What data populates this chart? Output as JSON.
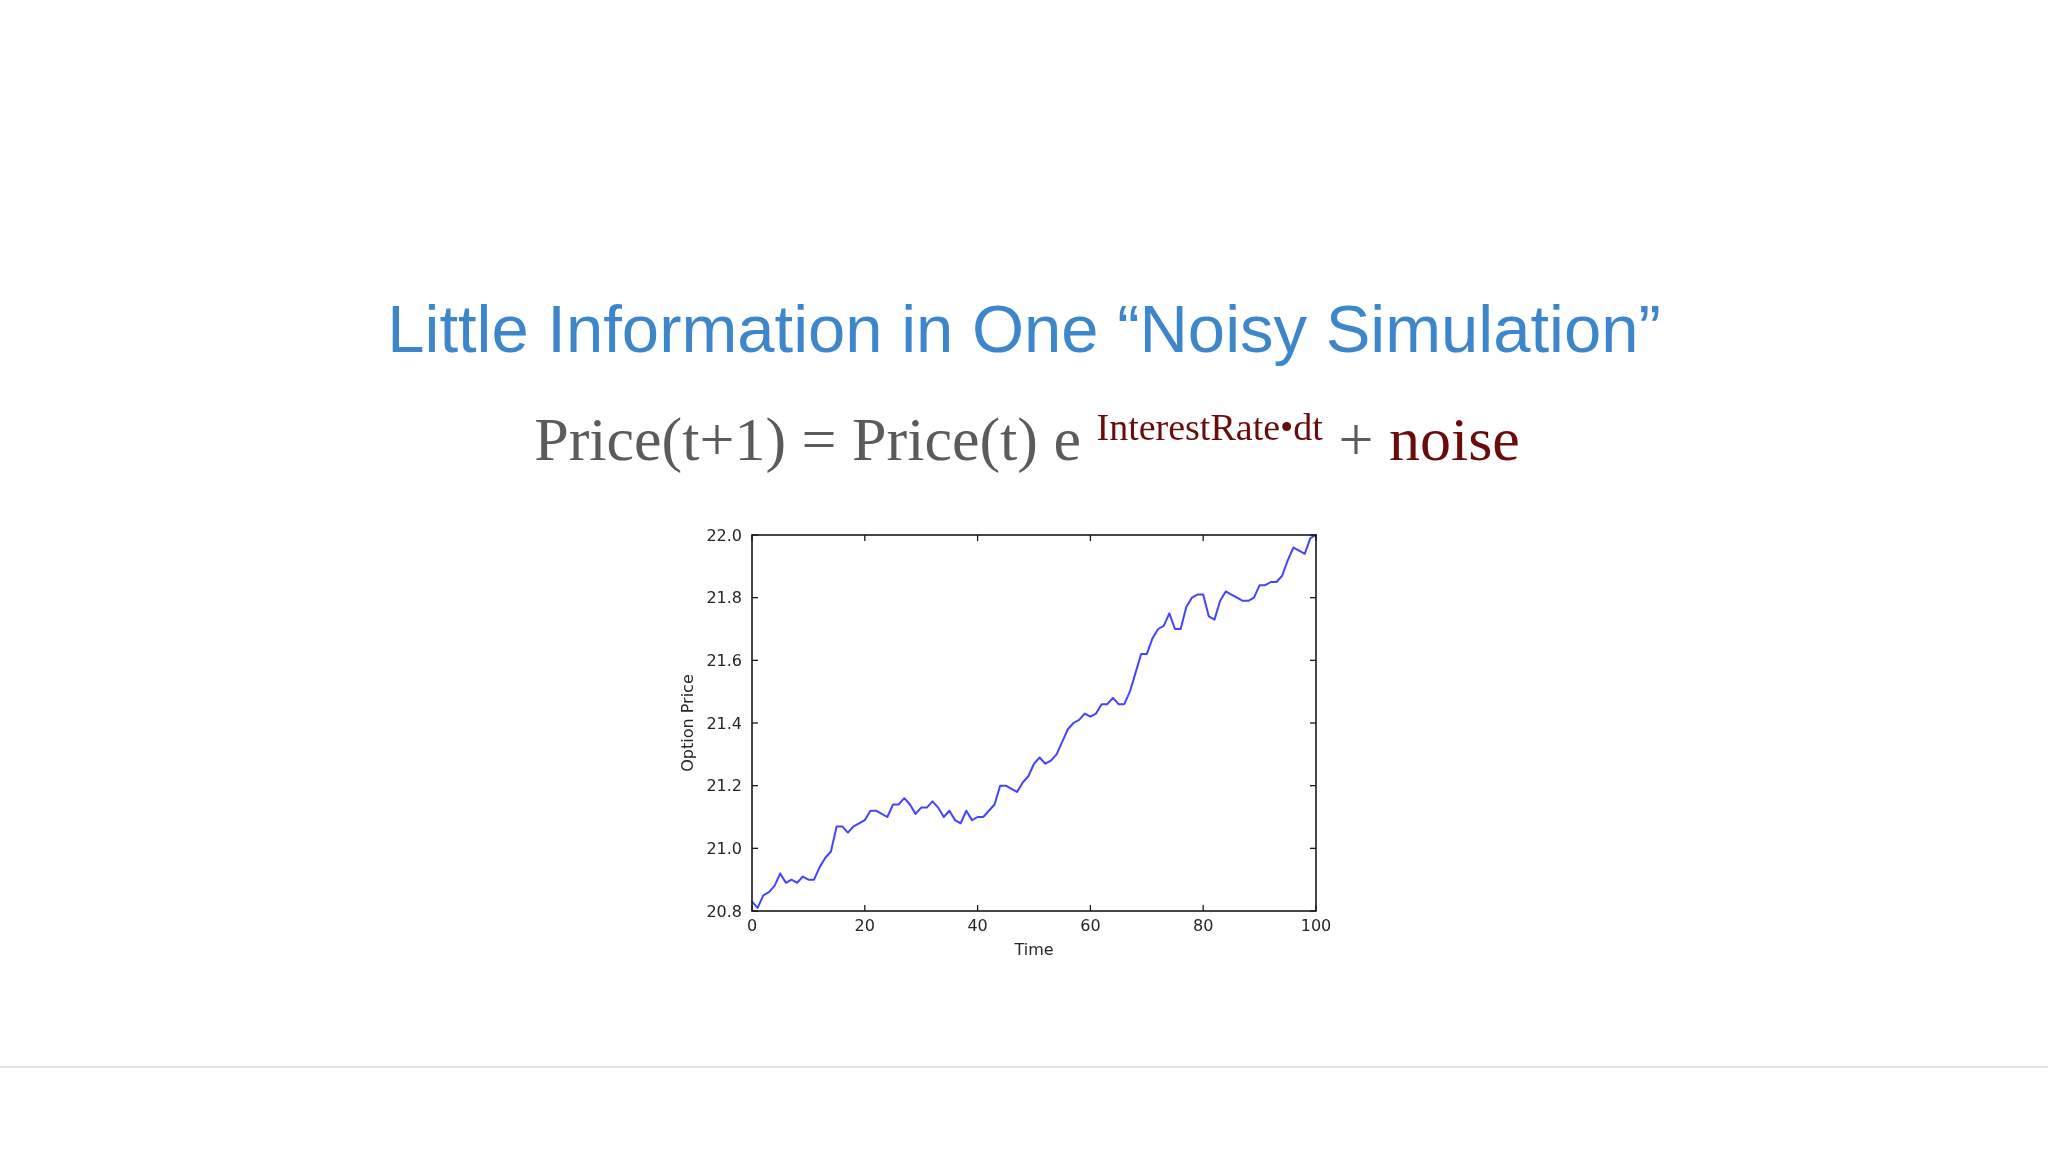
{
  "chart_data": {
    "type": "line",
    "title": "Little Information in One “Noisy Simulation”",
    "subtitle": "Price(t+1) = Price(t) e $^{InterestRate•dt}$ + noise",
    "xlabel": "Time",
    "ylabel": "Option Price",
    "x": [
      0,
      1,
      2,
      3,
      4,
      5,
      6,
      7,
      8,
      9,
      10,
      11,
      12,
      13,
      14,
      15,
      16,
      17,
      18,
      19,
      20,
      21,
      22,
      23,
      24,
      25,
      26,
      27,
      28,
      29,
      30,
      31,
      32,
      33,
      34,
      35,
      36,
      37,
      38,
      39,
      40,
      41,
      42,
      43,
      44,
      45,
      46,
      47,
      48,
      49,
      50,
      51,
      52,
      53,
      54,
      55,
      56,
      57,
      58,
      59,
      60,
      61,
      62,
      63,
      64,
      65,
      66,
      67,
      68,
      69,
      70,
      71,
      72,
      73,
      74,
      75,
      76,
      77,
      78,
      79,
      80,
      81,
      82,
      83,
      84,
      85,
      86,
      87,
      88,
      89,
      90,
      91,
      92,
      93,
      94,
      95,
      96,
      97,
      98,
      99,
      100
    ],
    "series": [
      {
        "color": "#4444ff",
        "values": [
          20.83,
          20.81,
          20.85,
          20.86,
          20.88,
          20.92,
          20.89,
          20.9,
          20.89,
          20.91,
          20.9,
          20.9,
          20.94,
          20.97,
          20.99,
          21.07,
          21.07,
          21.05,
          21.07,
          21.08,
          21.09,
          21.12,
          21.12,
          21.11,
          21.1,
          21.14,
          21.14,
          21.16,
          21.14,
          21.11,
          21.13,
          21.13,
          21.15,
          21.13,
          21.1,
          21.12,
          21.09,
          21.08,
          21.12,
          21.09,
          21.1,
          21.1,
          21.12,
          21.14,
          21.2,
          21.2,
          21.19,
          21.18,
          21.21,
          21.23,
          21.27,
          21.29,
          21.27,
          21.28,
          21.3,
          21.34,
          21.38,
          21.4,
          21.41,
          21.43,
          21.42,
          21.43,
          21.46,
          21.46,
          21.48,
          21.46,
          21.46,
          21.5,
          21.56,
          21.62,
          21.62,
          21.67,
          21.7,
          21.71,
          21.75,
          21.7,
          21.7,
          21.77,
          21.8,
          21.81,
          21.81,
          21.74,
          21.73,
          21.79,
          21.82,
          21.81,
          21.8,
          21.79,
          21.79,
          21.8,
          21.84,
          21.84,
          21.85,
          21.85,
          21.87,
          21.92,
          21.96,
          21.95,
          21.94,
          21.99,
          22.0
        ]
      }
    ],
    "xlim": [
      0,
      100
    ],
    "ylim": [
      20.8,
      22.0
    ],
    "xticks": [
      0,
      20,
      40,
      60,
      80,
      100
    ],
    "yticks": [
      20.8,
      {
        "value": 21,
        "label": "21.0"
      },
      21.2,
      21.4,
      21.6,
      21.8,
      {
        "value": 22,
        "label": "22.0"
      }
    ]
  }
}
